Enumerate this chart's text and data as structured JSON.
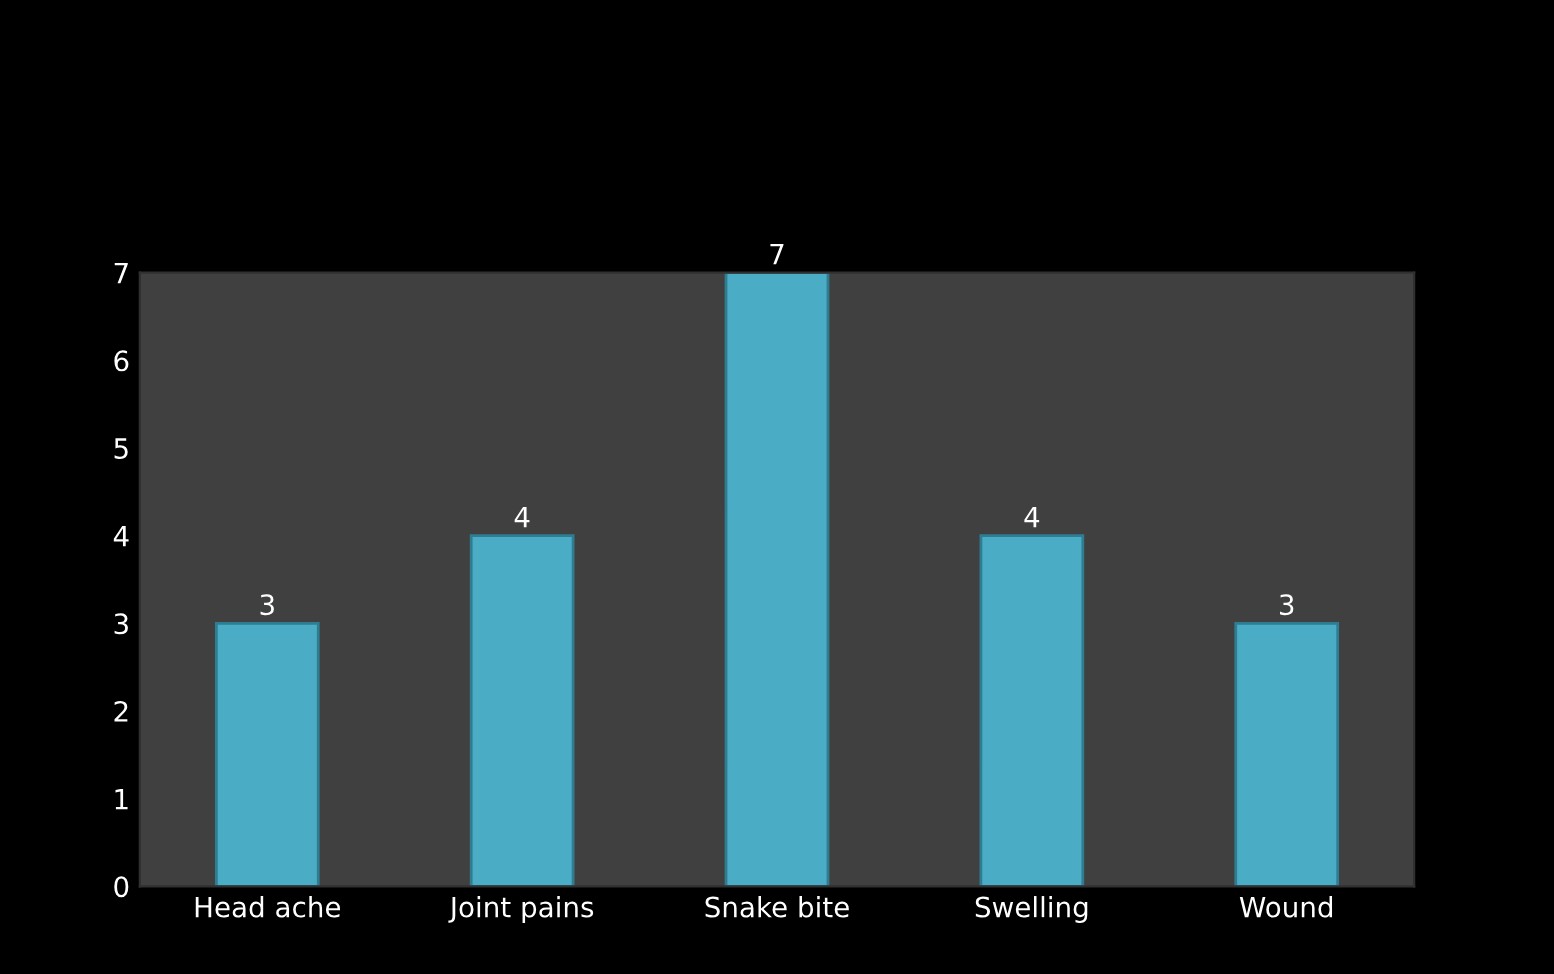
{
  "chart_data": {
    "type": "bar",
    "categories": [
      "Head ache",
      "Joint pains",
      "Snake bite",
      "Swelling",
      "Wound"
    ],
    "values": [
      3,
      4,
      7,
      4,
      3
    ],
    "color": "#4bacc6",
    "ylim": [
      0,
      7
    ],
    "yticks": [
      0,
      1,
      2,
      3,
      4,
      5,
      6,
      7
    ],
    "data_labels": true,
    "grid": false,
    "legend": false
  }
}
